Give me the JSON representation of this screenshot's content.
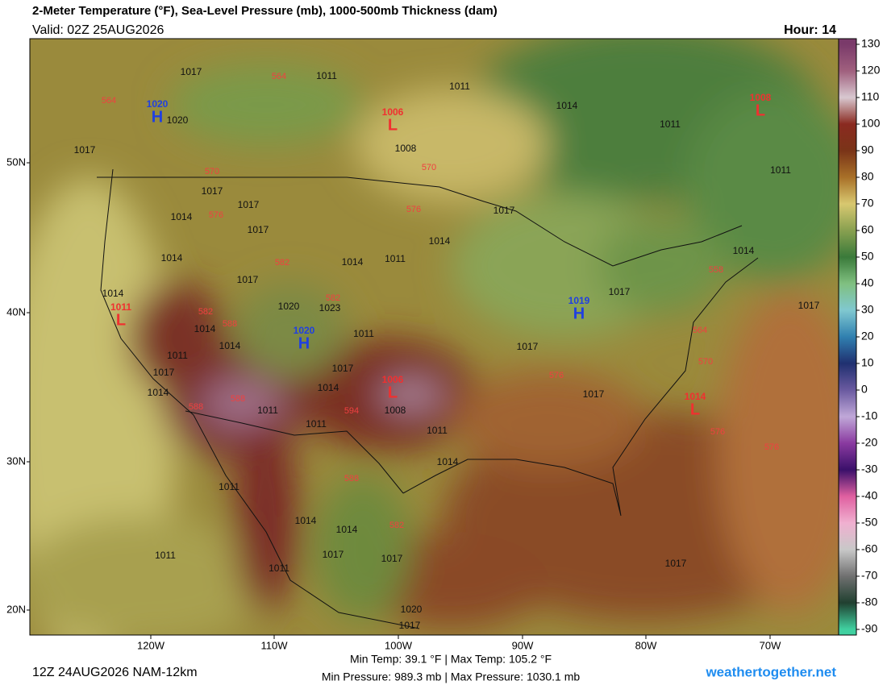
{
  "header": {
    "title": "2-Meter Temperature (°F), Sea-Level Pressure (mb), 1000-500mb Thickness (dam)",
    "valid": "Valid: 02Z 25AUG2026",
    "hour": "Hour: 14"
  },
  "colorbar": {
    "ticks": [
      130,
      120,
      110,
      100,
      90,
      80,
      70,
      60,
      50,
      40,
      30,
      20,
      10,
      0,
      -10,
      -20,
      -30,
      -40,
      -50,
      -60,
      -70,
      -80,
      -90
    ],
    "colors": [
      "#7a3a6a",
      "#a0607e",
      "#d8c8d0",
      "#8a2a20",
      "#7a3418",
      "#a87028",
      "#d8c870",
      "#88a050",
      "#3a7a3a",
      "#80c080",
      "#80c8d0",
      "#3080b0",
      "#203070",
      "#6a5aa0",
      "#c0a8d8",
      "#8a3aa0",
      "#3a106a",
      "#e060a0",
      "#f0b0d0",
      "#c8c8c8",
      "#707070",
      "#204030",
      "#40d0a0"
    ]
  },
  "map": {
    "lat_labels": [
      "50N",
      "40N",
      "30N",
      "20N"
    ],
    "lon_labels": [
      "120W",
      "110W",
      "100W",
      "90W",
      "80W",
      "70W"
    ],
    "isobar_labels": [
      1017,
      1011,
      1011,
      1014,
      1011,
      1020,
      1017,
      1008,
      1011,
      1017,
      1017,
      1014,
      1017,
      1014,
      1017,
      1014,
      1014,
      1011,
      1014,
      1017,
      1014,
      1020,
      1023,
      1017,
      1017,
      1014,
      1011,
      1014,
      1017,
      1011,
      1017,
      1017,
      1014,
      1017,
      1014,
      1011,
      1008,
      1011,
      1011,
      1014,
      1011,
      1014,
      1014,
      1017,
      1017,
      1011,
      1011,
      1017,
      1020,
      1017
    ],
    "thickness_labels": [
      564,
      564,
      570,
      570,
      576,
      576,
      582,
      582,
      582,
      588,
      558,
      564,
      570,
      576,
      588,
      588,
      594,
      576,
      576,
      588,
      582
    ],
    "centers": [
      {
        "symbol": "H",
        "pressure": 1020
      },
      {
        "symbol": "L",
        "pressure": 1006
      },
      {
        "symbol": "L",
        "pressure": 1008
      },
      {
        "symbol": "L",
        "pressure": 1011
      },
      {
        "symbol": "H",
        "pressure": 1020
      },
      {
        "symbol": "H",
        "pressure": 1019
      },
      {
        "symbol": "L",
        "pressure": 1006
      },
      {
        "symbol": "L",
        "pressure": 1014
      }
    ]
  },
  "footer": {
    "run": "12Z 24AUG2026 NAM-12km",
    "temps": "Min Temp:  39.1 °F | Max Temp: 105.2 °F",
    "pressures": "Min Pressure: 989.3 mb | Max Pressure: 1030.1 mb",
    "site": "weathertogether.net"
  }
}
